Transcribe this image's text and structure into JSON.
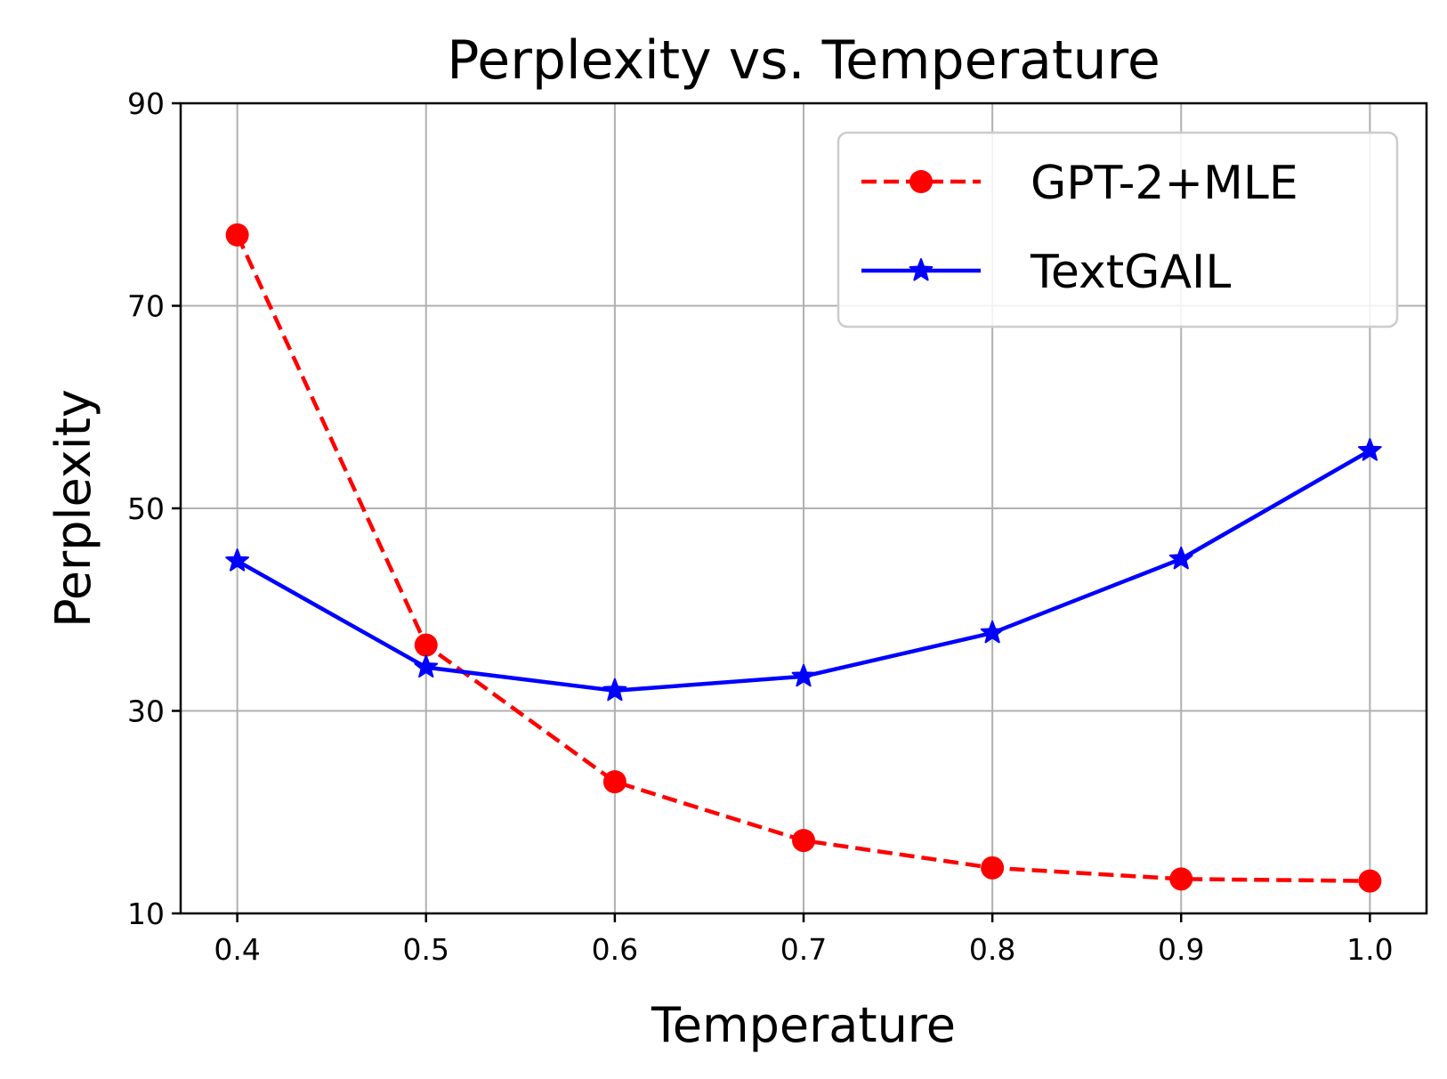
{
  "chart_data": {
    "type": "line",
    "title": "Perplexity vs. Temperature",
    "xlabel": "Temperature",
    "ylabel": "Perplexity",
    "x": [
      0.4,
      0.5,
      0.6,
      0.7,
      0.8,
      0.9,
      1.0
    ],
    "x_tick_labels": [
      "0.4",
      "0.5",
      "0.6",
      "0.7",
      "0.8",
      "0.9",
      "1.0"
    ],
    "y_ticks": [
      10,
      30,
      50,
      70,
      90
    ],
    "xlim": [
      0.37,
      1.03
    ],
    "ylim": [
      10,
      90
    ],
    "grid": true,
    "legend_position": "top-right",
    "series": [
      {
        "name": "GPT-2+MLE",
        "color": "#ff0000",
        "line_style": "dashed",
        "marker": "circle",
        "values": [
          77.0,
          36.5,
          23.0,
          17.2,
          14.5,
          13.4,
          13.2
        ]
      },
      {
        "name": "TextGAIL",
        "color": "#0000ff",
        "line_style": "solid",
        "marker": "star",
        "values": [
          44.8,
          34.3,
          32.0,
          33.4,
          37.7,
          45.0,
          55.7
        ]
      }
    ]
  }
}
